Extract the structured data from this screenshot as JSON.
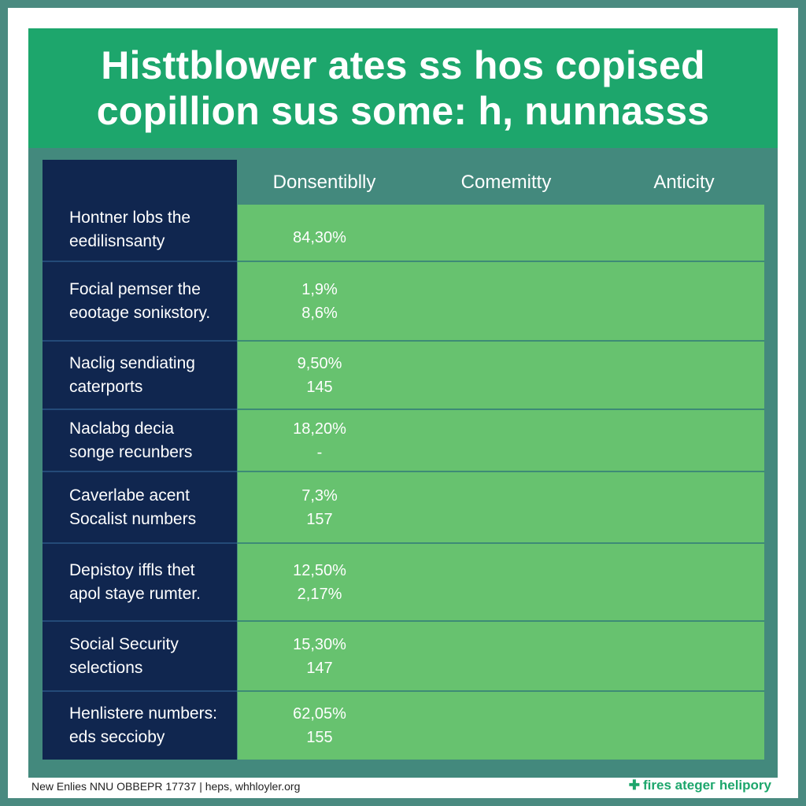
{
  "headline": {
    "line1": "Histtblower ates ss hos copised",
    "line2": "copillion sus some: h, nunnasss"
  },
  "columns": [
    "Donsentiblly",
    "Comemitty",
    "Anticity"
  ],
  "rows": [
    {
      "label": [
        "Hontner lobs the",
        "eedilisnsanty"
      ],
      "values": [
        "84,30%"
      ]
    },
    {
      "label": [
        "Focial pemser the",
        "eootage soniкstory."
      ],
      "values": [
        "1,9%",
        "8,6%"
      ]
    },
    {
      "label": [
        "Naclig sendiating",
        "caterports"
      ],
      "values": [
        "9,50%",
        "145"
      ]
    },
    {
      "label": [
        "Naclabg decia",
        "songe recunbers"
      ],
      "values": [
        "18,20%",
        "-"
      ]
    },
    {
      "label": [
        "Caverlabe acent",
        "Socalist numbers"
      ],
      "values": [
        "7,3%",
        "157"
      ]
    },
    {
      "label": [
        "Depistoy iffls thet",
        "apol staye rumter."
      ],
      "values": [
        "12,50%",
        "2,17%"
      ]
    },
    {
      "label": [
        "Social Security",
        "selections"
      ],
      "values": [
        "15,30%",
        "147"
      ]
    },
    {
      "label": [
        "Henlistere numbers:",
        "eds secciobу"
      ],
      "values": [
        "62,05%",
        "155"
      ]
    }
  ],
  "footer": {
    "left": "New Enlies NNU OBBEPR 17737 | heps, whhloyler.org",
    "right": "fires ategег helipory",
    "right_icon": "plus-icon"
  },
  "colors": {
    "header_green": "#1da66c",
    "table_green": "#67c26f",
    "navy": "#10264f",
    "border_teal": "#4a8a80"
  }
}
